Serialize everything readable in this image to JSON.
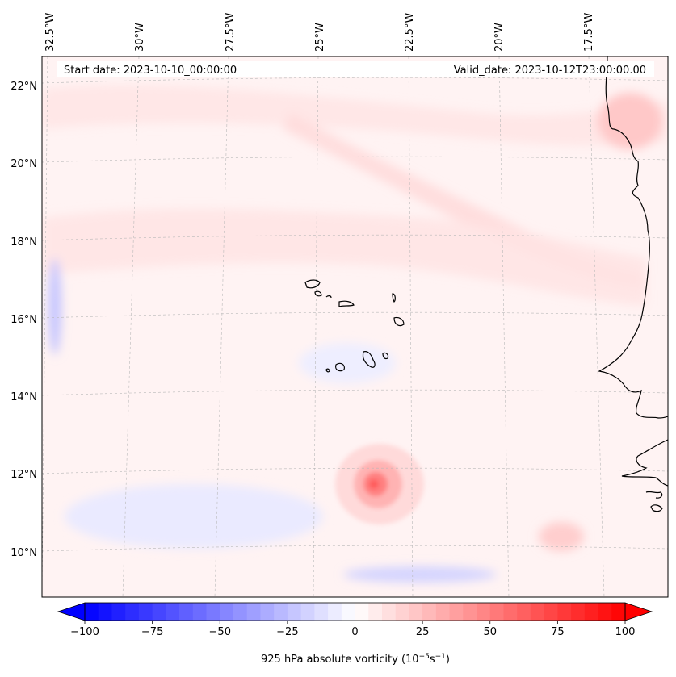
{
  "map": {
    "start_date_label": "Start date: 2023-10-10_00:00:00",
    "valid_date_label": "Valid_date: 2023-10-12T23:00:00.00",
    "lon_labels": [
      "32.5°W",
      "30°W",
      "27.5°W",
      "25°W",
      "22.5°W",
      "20°W",
      "17.5°W"
    ],
    "lat_labels": [
      "22°N",
      "20°N",
      "18°N",
      "16°N",
      "14°N",
      "12°N",
      "10°N"
    ]
  },
  "colorbar": {
    "title": "925 hPa absolute vorticity (10",
    "title_exp1": "−5",
    "title_mid": "s",
    "title_exp2": "−1",
    "title_end": ")",
    "ticks": [
      "−100",
      "−75",
      "−50",
      "−25",
      "0",
      "25",
      "50",
      "75",
      "100"
    ],
    "min": -100,
    "max": 100,
    "levels": 40
  },
  "colors": {
    "negative": "#0000ff",
    "positive": "#ff0000",
    "coastline": "#000000"
  }
}
